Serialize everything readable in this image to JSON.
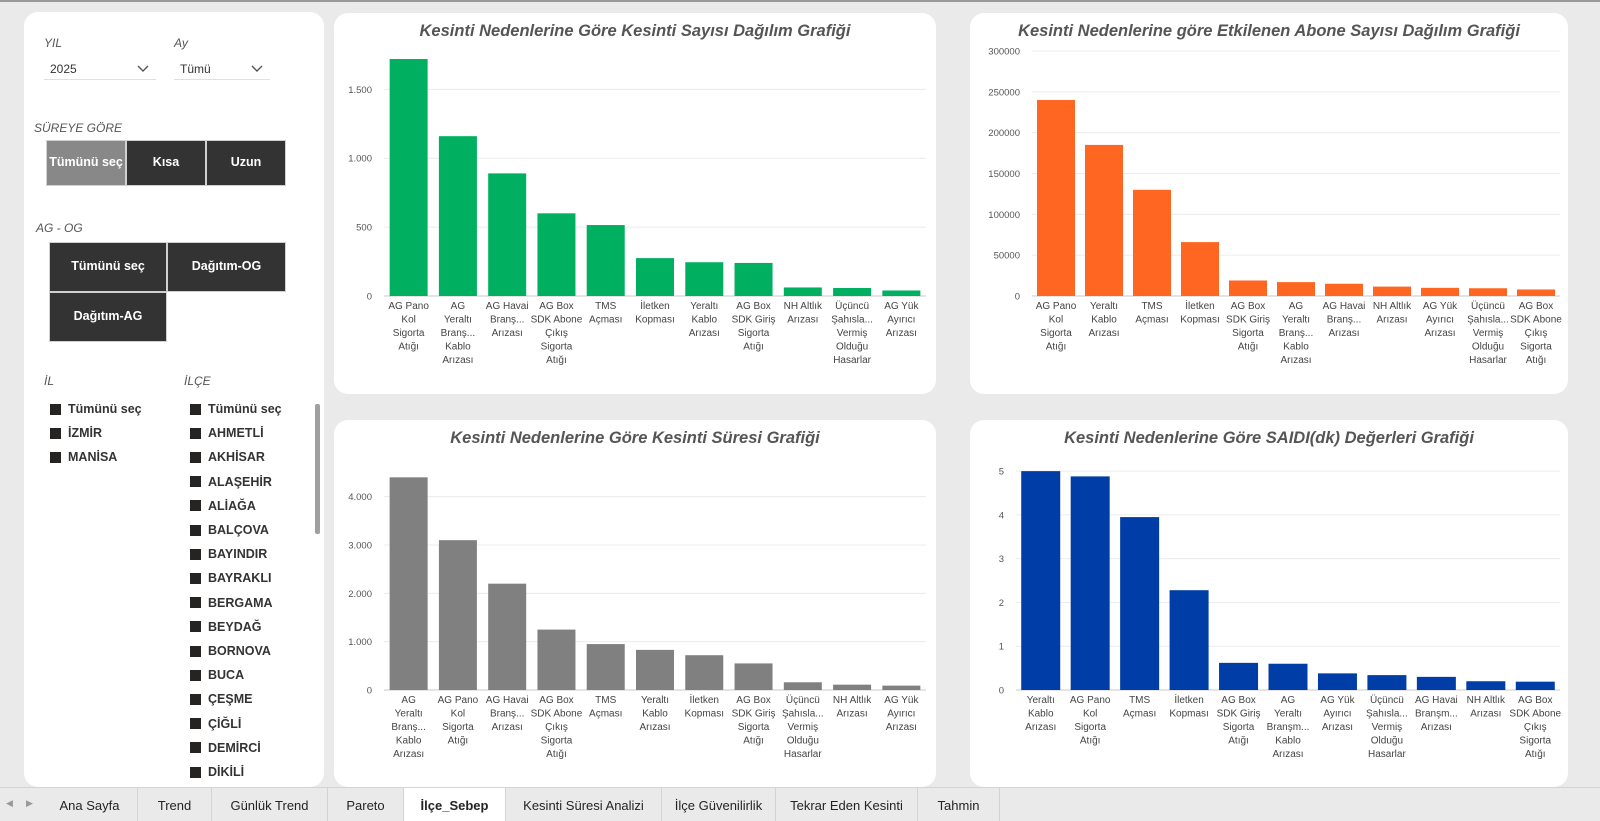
{
  "filters": {
    "year": {
      "label": "YIL",
      "value": "2025"
    },
    "month": {
      "label": "Ay",
      "value": "Tümü"
    },
    "duration": {
      "label": "SÜREYE GÖRE",
      "options": [
        "Tümünü seç",
        "Kısa",
        "Uzun"
      ],
      "selected": 0
    },
    "agog": {
      "label": "AG - OG",
      "options": [
        "Tümünü seç",
        "Dağıtım-OG",
        "Dağıtım-AG"
      ]
    },
    "province": {
      "label": "İL",
      "items": [
        "Tümünü seç",
        "İZMİR",
        "MANİSA"
      ]
    },
    "district": {
      "label": "İLÇE",
      "items": [
        "Tümünü seç",
        "AHMETLİ",
        "AKHİSAR",
        "ALAŞEHİR",
        "ALİAĞA",
        "BALÇOVA",
        "BAYINDIR",
        "BAYRAKLI",
        "BERGAMA",
        "BEYDAĞ",
        "BORNOVA",
        "BUCA",
        "ÇEŞME",
        "ÇİĞLİ",
        "DEMİRCİ",
        "DİKİLİ"
      ]
    }
  },
  "chart_data": [
    {
      "id": "count",
      "type": "bar",
      "title": "Kesinti Nedenlerine Göre Kesinti Sayısı Dağılım Grafiği",
      "color": "#00b060",
      "categories": [
        "AG Pano Kol Sigorta Atığı",
        "AG Yeraltı Branş... Kablo Arızası",
        "AG Havai Branş... Arızası",
        "AG Box SDK Abone Çıkış Sigorta Atığı",
        "TMS Açması",
        "İletken Kopması",
        "Yeraltı Kablo Arızası",
        "AG Box SDK Giriş Sigorta Atığı",
        "NH Altlık Arızası",
        "Üçüncü Şahısla... Vermiş Olduğu Hasarlar",
        "AG Yük Ayırıcı Arızası"
      ],
      "values": [
        1720,
        1160,
        890,
        600,
        515,
        275,
        245,
        240,
        62,
        58,
        40
      ],
      "ylim": [
        0,
        1800
      ],
      "yticks": [
        0,
        500,
        1000,
        1500
      ],
      "ytick_labels": [
        "0",
        "500",
        "1.000",
        "1.500"
      ]
    },
    {
      "id": "subscribers",
      "type": "bar",
      "title": "Kesinti Nedenlerine göre Etkilenen Abone Sayısı Dağılım Grafiği",
      "color": "#ff6622",
      "categories": [
        "AG Pano Kol Sigorta Atığı",
        "Yeraltı Kablo Arızası",
        "TMS Açması",
        "İletken Kopması",
        "AG Box SDK Giriş Sigorta Atığı",
        "AG Yeraltı Branş... Kablo Arızası",
        "AG Havai Branş... Arızası",
        "NH Altlık Arızası",
        "AG Yük Ayırıcı Arızası",
        "Üçüncü Şahısla... Vermiş Olduğu Hasarlar",
        "AG Box SDK Abone Çıkış Sigorta Atığı"
      ],
      "values": [
        240000,
        185000,
        130000,
        66000,
        19000,
        17000,
        15000,
        11500,
        10000,
        9500,
        8000
      ],
      "ylim": [
        0,
        300000
      ],
      "yticks": [
        0,
        50000,
        100000,
        150000,
        200000,
        250000,
        300000
      ],
      "ytick_labels": [
        "0",
        "50000",
        "100000",
        "150000",
        "200000",
        "250000",
        "300000"
      ]
    },
    {
      "id": "duration",
      "type": "bar",
      "title": "Kesinti Nedenlerine Göre Kesinti Süresi Grafiği",
      "color": "#808080",
      "categories": [
        "AG Yeraltı Branş... Kablo Arızası",
        "AG Pano Kol Sigorta Atığı",
        "AG Havai Branş... Arızası",
        "AG Box SDK Abone Çıkış Sigorta Atığı",
        "TMS Açması",
        "Yeraltı Kablo Arızası",
        "İletken Kopması",
        "AG Box SDK Giriş Sigorta Atığı",
        "Üçüncü Şahısla... Vermiş Olduğu Hasarlar",
        "NH Altlık Arızası",
        "AG Yük Ayırıcı Arızası"
      ],
      "values": [
        4400,
        3100,
        2200,
        1250,
        950,
        830,
        720,
        550,
        160,
        110,
        90
      ],
      "ylim": [
        0,
        4800
      ],
      "yticks": [
        0,
        1000,
        2000,
        3000,
        4000
      ],
      "ytick_labels": [
        "0",
        "1.000",
        "2.000",
        "3.000",
        "4.000"
      ]
    },
    {
      "id": "saidi",
      "type": "bar",
      "title": "Kesinti Nedenlerine Göre SAIDI(dk) Değerleri Grafiği",
      "color": "#003da6",
      "categories": [
        "Yeraltı Kablo Arızası",
        "AG Pano Kol Sigorta Atığı",
        "TMS Açması",
        "İletken Kopması",
        "AG Box SDK Giriş Sigorta Atığı",
        "AG Yeraltı Branşm... Kablo Arızası",
        "AG Yük Ayırıcı Arızası",
        "Üçüncü Şahısla... Vermiş Olduğu Hasarlar",
        "AG Havai Branşm... Arızası",
        "NH Altlık Arızası",
        "AG Box SDK Abone Çıkış Sigorta Atığı"
      ],
      "values": [
        5.0,
        4.88,
        3.95,
        2.28,
        0.62,
        0.6,
        0.38,
        0.34,
        0.3,
        0.2,
        0.19
      ],
      "ylim": [
        0,
        5.3
      ],
      "yticks": [
        0,
        1,
        2,
        3,
        4,
        5
      ],
      "ytick_labels": [
        "0",
        "1",
        "2",
        "3",
        "4",
        "5"
      ]
    }
  ],
  "tabs": [
    "Ana Sayfa",
    "Trend",
    "Günlük Trend",
    "Pareto",
    "İlçe_Sebep",
    "Kesinti Süresi Analizi",
    "İlçe Güvenilirlik",
    "Tekrar Eden Kesinti",
    "Tahmin"
  ],
  "active_tab": "İlçe_Sebep"
}
